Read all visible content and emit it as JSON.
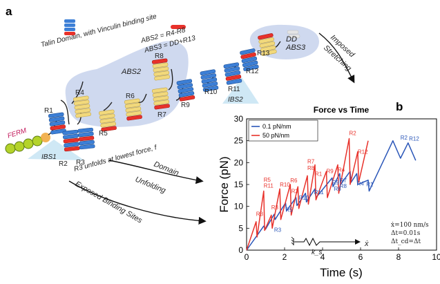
{
  "panel_a": {
    "letter": "a",
    "legend_domain": "Talin Domain, with Vinculin binding site",
    "abs2_def": "ABS2 = R4-R8",
    "abs3_def": "ABS3 = DD+R13",
    "ferm": "FERM",
    "ibs1": "IBS1",
    "ibs2": "IBS2",
    "abs2": "ABS2",
    "abs3": "ABS3",
    "dd": "DD",
    "imposed": "Imposed",
    "stretching": "Stretching",
    "r3_note": "R3 unfolds at lowest force, f",
    "domain": "Domain",
    "unfolding": "Unfolding",
    "exposed": "Exposed Binding Sites",
    "domains": [
      "R1",
      "R2",
      "R3",
      "R4",
      "R5",
      "R6",
      "R7",
      "R8",
      "R9",
      "R10",
      "R11",
      "R12",
      "R13"
    ]
  },
  "panel_b": {
    "letter": "b",
    "params": [
      "ẋ=100 nm/s",
      "Δt=0.01s",
      "Δt_cd=Δt"
    ],
    "spring_label": "k_s",
    "pull_label": "ẋ"
  },
  "chart_data": {
    "type": "line",
    "title": "Force vs Time",
    "xlabel": "Time (s)",
    "ylabel": "Force (pN)",
    "xlim": [
      0,
      10
    ],
    "ylim": [
      0,
      30
    ],
    "xticks": [
      0,
      2,
      4,
      6,
      8,
      10
    ],
    "yticks": [
      0,
      5,
      10,
      15,
      20,
      25,
      30
    ],
    "legend_position": "top-left",
    "series": [
      {
        "name": "0.1 pN/nm",
        "color": "#2a56b8",
        "x": [
          0,
          0.9,
          1.0,
          1.45,
          1.5,
          2.05,
          2.1,
          2.6,
          2.65,
          3.1,
          3.15,
          3.6,
          3.65,
          4.5,
          4.55,
          4.9,
          4.95,
          5.45,
          5.5,
          5.8,
          5.85,
          6.4,
          6.45,
          7.7,
          8.1,
          8.5,
          8.9
        ],
        "y": [
          0,
          5.5,
          4.8,
          8.2,
          7.0,
          10.8,
          9.0,
          12.0,
          10.2,
          13.0,
          11.0,
          14.0,
          12.0,
          16.5,
          14.5,
          17.5,
          15.0,
          18.0,
          15.5,
          17.5,
          15.0,
          16.0,
          13.5,
          25.0,
          21.0,
          24.5,
          20.5
        ]
      },
      {
        "name": "50 pN/nm",
        "color": "#e8312a",
        "x": [
          0,
          0.5,
          0.55,
          0.9,
          0.95,
          1.3,
          1.35,
          1.75,
          1.8,
          2.3,
          2.35,
          2.7,
          2.75,
          3.2,
          3.25,
          3.6,
          3.65,
          4.2,
          4.25,
          4.8,
          4.85,
          5.4,
          5.45,
          5.85,
          5.9,
          6.4
        ],
        "y": [
          0,
          6.5,
          3.0,
          13.5,
          4.5,
          8.0,
          5.0,
          14.0,
          7.0,
          15.0,
          8.0,
          14.5,
          9.5,
          17.0,
          10.5,
          19.5,
          11.5,
          18.0,
          12.0,
          19.5,
          13.0,
          25.5,
          15.0,
          22.5,
          15.5,
          25.0
        ]
      }
    ],
    "annotations": [
      {
        "text": "R3",
        "x": 0.5,
        "y": 7.8,
        "series": 1
      },
      {
        "text": "R5",
        "x": 0.9,
        "y": 15.6,
        "series": 1
      },
      {
        "text": "R11",
        "x": 0.9,
        "y": 14.3,
        "series": 1
      },
      {
        "text": "R3",
        "x": 1.3,
        "y": 9.3,
        "series": 1
      },
      {
        "text": "R10",
        "x": 1.75,
        "y": 14.5,
        "series": 1
      },
      {
        "text": "R3",
        "x": 1.45,
        "y": 4.2,
        "series": 0
      },
      {
        "text": "R5",
        "x": 2.05,
        "y": 8.8,
        "series": 0
      },
      {
        "text": "R6",
        "x": 2.3,
        "y": 15.5,
        "series": 1
      },
      {
        "text": "R3",
        "x": 2.35,
        "y": 13.0,
        "series": 1
      },
      {
        "text": "R10",
        "x": 2.75,
        "y": 11.5,
        "series": 0
      },
      {
        "text": "R7",
        "x": 3.2,
        "y": 19.8,
        "series": 1
      },
      {
        "text": "R8",
        "x": 3.2,
        "y": 18.3,
        "series": 1
      },
      {
        "text": "R11",
        "x": 3.55,
        "y": 12.8,
        "series": 0
      },
      {
        "text": "R1",
        "x": 3.6,
        "y": 17.0,
        "series": 1
      },
      {
        "text": "R9",
        "x": 4.2,
        "y": 17.6,
        "series": 1
      },
      {
        "text": "R9",
        "x": 4.5,
        "y": 15.0,
        "series": 0
      },
      {
        "text": "R6",
        "x": 4.6,
        "y": 13.6,
        "series": 0
      },
      {
        "text": "R4",
        "x": 4.8,
        "y": 17.9,
        "series": 1
      },
      {
        "text": "R7",
        "x": 4.9,
        "y": 15.5,
        "series": 0
      },
      {
        "text": "R8",
        "x": 4.9,
        "y": 14.2,
        "series": 0
      },
      {
        "text": "R2",
        "x": 5.4,
        "y": 26.3,
        "series": 1
      },
      {
        "text": "R12",
        "x": 5.85,
        "y": 22.0,
        "series": 1
      },
      {
        "text": "R4",
        "x": 5.8,
        "y": 14.8,
        "series": 0
      },
      {
        "text": "R1",
        "x": 6.3,
        "y": 14.6,
        "series": 0
      },
      {
        "text": "R2",
        "x": 8.1,
        "y": 25.3,
        "series": 0
      },
      {
        "text": "R12",
        "x": 8.55,
        "y": 25.0,
        "series": 0
      }
    ]
  }
}
